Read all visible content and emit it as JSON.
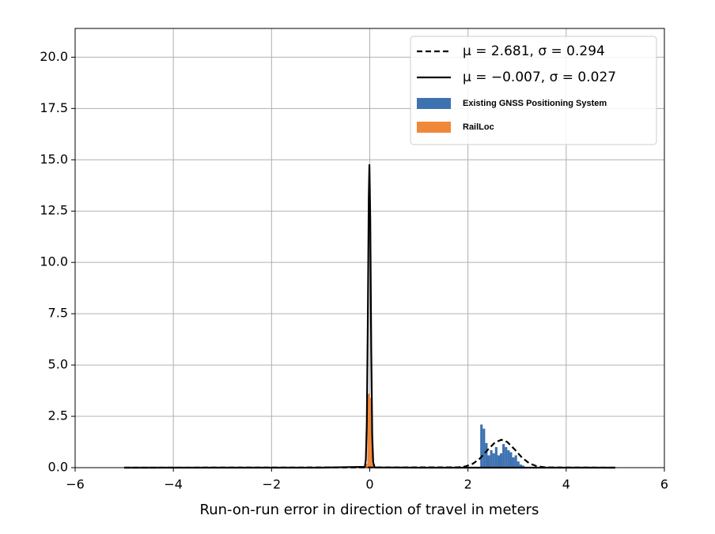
{
  "chart_data": {
    "type": "histogram",
    "xlabel": "Run-on-run error in direction of travel in meters",
    "xlim": [
      -6,
      6
    ],
    "ylim": [
      0,
      21.4
    ],
    "xticks": [
      {
        "value": -6,
        "label": "−6"
      },
      {
        "value": -4,
        "label": "−4"
      },
      {
        "value": -2,
        "label": "−2"
      },
      0,
      2,
      4,
      6
    ],
    "yticks": [
      {
        "value": 0,
        "label": "0.0"
      },
      2.5,
      {
        "value": 5,
        "label": "5.0"
      },
      7.5,
      {
        "value": 10,
        "label": "10.0"
      },
      12.5,
      {
        "value": 15,
        "label": "15.0"
      },
      17.5,
      {
        "value": 20,
        "label": "20.0"
      }
    ],
    "grid": true,
    "legend": "upper right",
    "series": [
      {
        "name": "μ = 2.681, σ = 0.294",
        "type": "line",
        "linestyle": "dashed",
        "color": "#000000",
        "x": [
          -5,
          1.8,
          1.95,
          2.1,
          2.25,
          2.4,
          2.55,
          2.681,
          2.8,
          2.95,
          3.1,
          3.25,
          3.4,
          3.6,
          5
        ],
        "values": [
          0,
          0.015,
          0.06,
          0.19,
          0.46,
          0.86,
          1.23,
          1.357,
          1.25,
          0.89,
          0.49,
          0.21,
          0.07,
          0.01,
          0
        ]
      },
      {
        "name": "μ = −0.007, σ = 0.027",
        "type": "line",
        "linestyle": "solid",
        "color": "#000000",
        "x": [
          -5,
          -1,
          -0.1,
          -0.08,
          -0.06,
          -0.04,
          -0.02,
          -0.007,
          0.01,
          0.03,
          0.05,
          0.07,
          0.1,
          1,
          5
        ],
        "values": [
          0,
          0,
          0.04,
          0.38,
          2.15,
          7.0,
          13.17,
          14.78,
          12.12,
          5.78,
          1.59,
          0.25,
          0.01,
          0,
          0
        ]
      },
      {
        "name": "Existing GNSS Positioning System",
        "type": "bar",
        "color": "#3d72b0",
        "bins": [
          2.25,
          2.3,
          2.35,
          2.4,
          2.45,
          2.5,
          2.55,
          2.6,
          2.65,
          2.7,
          2.75,
          2.8,
          2.85,
          2.9,
          2.95,
          3.0,
          3.05,
          3.1,
          3.15
        ],
        "values": [
          2.1,
          1.9,
          1.2,
          0.6,
          0.85,
          0.7,
          1.0,
          0.6,
          0.7,
          1.15,
          1.0,
          0.85,
          0.75,
          0.5,
          0.6,
          0.3,
          0.15,
          0.1
        ]
      },
      {
        "name": "RailLoc",
        "type": "bar",
        "color": "#f0883a",
        "bins": [
          -0.1,
          -0.05,
          0,
          0.05,
          0.1
        ],
        "values": [
          0.2,
          3.6,
          3.4,
          0.2
        ]
      }
    ]
  }
}
